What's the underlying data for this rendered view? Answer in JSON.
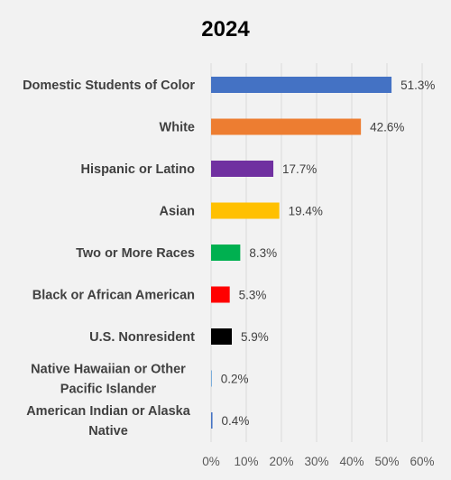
{
  "chart_data": {
    "type": "bar",
    "orientation": "horizontal",
    "title": "2024",
    "xlabel": "",
    "ylabel": "",
    "categories": [
      "Domestic Students of Color",
      "White",
      "Hispanic or Latino",
      "Asian",
      "Two or More Races",
      "Black or African American",
      "U.S. Nonresident",
      "Native Hawaiian or Other Pacific Islander",
      "American Indian or Alaska Native"
    ],
    "category_label_lines": [
      [
        "Domestic Students of Color"
      ],
      [
        "White"
      ],
      [
        "Hispanic or Latino"
      ],
      [
        "Asian"
      ],
      [
        "Two or More Races"
      ],
      [
        "Black or African American"
      ],
      [
        "U.S. Nonresident"
      ],
      [
        "Native Hawaiian or Other",
        "Pacific Islander"
      ],
      [
        "American Indian or Alaska",
        "Native"
      ]
    ],
    "values": [
      51.3,
      42.6,
      17.7,
      19.4,
      8.3,
      5.3,
      5.9,
      0.2,
      0.4
    ],
    "data_labels": [
      "51.3%",
      "42.6%",
      "17.7%",
      "19.4%",
      "8.3%",
      "5.3%",
      "5.9%",
      "0.2%",
      "0.4%"
    ],
    "colors": [
      "#4472c4",
      "#ed7d31",
      "#7030a0",
      "#ffc000",
      "#00b050",
      "#ff0000",
      "#000000",
      "#5b9bd5",
      "#4472c4"
    ],
    "xlim": [
      0,
      60
    ],
    "xticks": [
      0,
      10,
      20,
      30,
      40,
      50,
      60
    ],
    "xtick_labels": [
      "0%",
      "10%",
      "20%",
      "30%",
      "40%",
      "50%",
      "60%"
    ],
    "grid": true,
    "legend": "none",
    "background": "#f2f2f2"
  }
}
